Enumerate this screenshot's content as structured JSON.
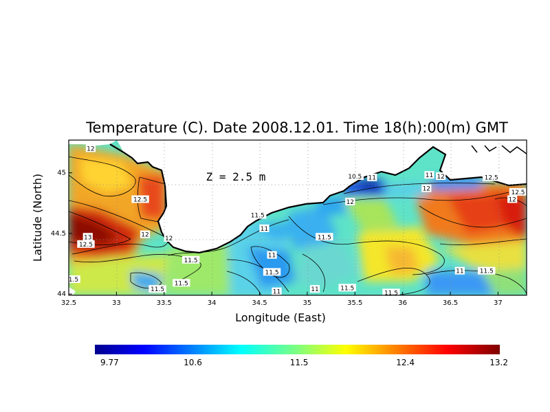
{
  "chart_data": {
    "type": "heatmap",
    "title": "Temperature (C). Date 2008.12.01. Time 18(h):00(m) GMT",
    "xlabel": "Longitude (East)",
    "ylabel": "Latitude (North)",
    "xlim": [
      32.5,
      37.3
    ],
    "ylim": [
      43.99,
      45.27
    ],
    "x_ticks": [
      "32.5",
      "33",
      "33.5",
      "34",
      "34.5",
      "35",
      "35.5",
      "36",
      "36.5",
      "37"
    ],
    "y_ticks": [
      "44",
      "44.5",
      "45"
    ],
    "grid": true,
    "annotation": "Z = 2.5 m",
    "colorbar": {
      "min": 9.77,
      "max": 13.2,
      "ticks": [
        "9.77",
        "10.6",
        "11.5",
        "12.4",
        "13.2"
      ]
    },
    "contour_labels": [
      {
        "text": "12",
        "lon": 32.73,
        "lat": 45.2
      },
      {
        "text": "12.5",
        "lon": 33.25,
        "lat": 44.78
      },
      {
        "text": "12",
        "lon": 33.3,
        "lat": 44.49
      },
      {
        "text": "13",
        "lon": 32.7,
        "lat": 44.47
      },
      {
        "text": "12.5",
        "lon": 32.68,
        "lat": 44.41
      },
      {
        "text": "12",
        "lon": 33.55,
        "lat": 44.46
      },
      {
        "text": "11.5",
        "lon": 33.78,
        "lat": 44.28
      },
      {
        "text": "11.5",
        "lon": 33.68,
        "lat": 44.09
      },
      {
        "text": "11.5",
        "lon": 33.43,
        "lat": 44.04
      },
      {
        "text": "1.5",
        "lon": 32.55,
        "lat": 44.12
      },
      {
        "text": "11.5",
        "lon": 34.48,
        "lat": 44.65
      },
      {
        "text": "11",
        "lon": 34.55,
        "lat": 44.54
      },
      {
        "text": "11.5",
        "lon": 35.18,
        "lat": 44.47
      },
      {
        "text": "11",
        "lon": 34.63,
        "lat": 44.32
      },
      {
        "text": "11.5",
        "lon": 34.63,
        "lat": 44.18
      },
      {
        "text": "11",
        "lon": 34.68,
        "lat": 44.02
      },
      {
        "text": "11",
        "lon": 35.08,
        "lat": 44.04
      },
      {
        "text": "11.5",
        "lon": 35.42,
        "lat": 44.05
      },
      {
        "text": "11.5",
        "lon": 35.88,
        "lat": 44.01
      },
      {
        "text": "10.5",
        "lon": 35.5,
        "lat": 44.97
      },
      {
        "text": "11",
        "lon": 35.68,
        "lat": 44.96
      },
      {
        "text": "12",
        "lon": 35.45,
        "lat": 44.76
      },
      {
        "text": "11",
        "lon": 36.28,
        "lat": 44.98
      },
      {
        "text": "12",
        "lon": 36.4,
        "lat": 44.97
      },
      {
        "text": "12",
        "lon": 36.25,
        "lat": 44.87
      },
      {
        "text": "12.5",
        "lon": 36.93,
        "lat": 44.96
      },
      {
        "text": "12.5",
        "lon": 37.21,
        "lat": 44.84
      },
      {
        "text": "12",
        "lon": 37.15,
        "lat": 44.78
      },
      {
        "text": "11",
        "lon": 36.6,
        "lat": 44.19
      },
      {
        "text": "11.5",
        "lon": 36.88,
        "lat": 44.19
      }
    ]
  }
}
